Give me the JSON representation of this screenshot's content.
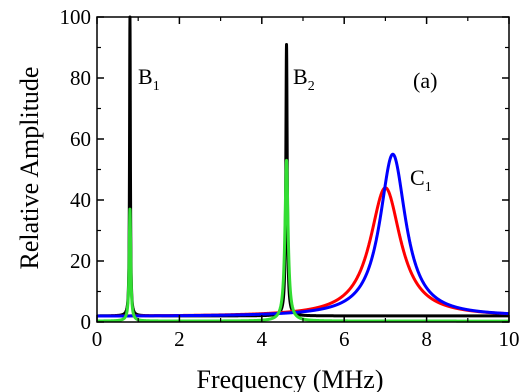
{
  "chart_data": {
    "type": "line",
    "panel_label": "(a)",
    "xlabel": "Frequency (MHz)",
    "ylabel": "Relative Amplitude",
    "xlim": [
      0,
      10
    ],
    "ylim": [
      0,
      100
    ],
    "x_ticks": [
      "0",
      "2",
      "4",
      "6",
      "8",
      "10"
    ],
    "y_ticks": [
      "0",
      "20",
      "40",
      "60",
      "80",
      "100"
    ],
    "grid": false,
    "annotations": [
      {
        "label": "B",
        "subscript": "1"
      },
      {
        "label": "B",
        "subscript": "2"
      },
      {
        "label": "C",
        "subscript": "1"
      }
    ],
    "series": [
      {
        "color": "#000000",
        "baseline": 2.0,
        "peaks": [
          {
            "x0": 0.8,
            "height": 100,
            "width": 0.012
          },
          {
            "x0": 4.6,
            "height": 91,
            "width": 0.02
          }
        ]
      },
      {
        "color": "#ff0000",
        "baseline": 1.8,
        "peaks": [
          {
            "x0": 7.0,
            "height": 44,
            "width": 0.45
          }
        ]
      },
      {
        "color": "#0000ff",
        "baseline": 1.8,
        "peaks": [
          {
            "x0": 7.18,
            "height": 55,
            "width": 0.38
          }
        ]
      },
      {
        "color": "#33dd33",
        "baseline": 0.3,
        "peaks": [
          {
            "x0": 0.8,
            "height": 37,
            "width": 0.022
          },
          {
            "x0": 4.6,
            "height": 53,
            "width": 0.045
          }
        ]
      }
    ]
  }
}
